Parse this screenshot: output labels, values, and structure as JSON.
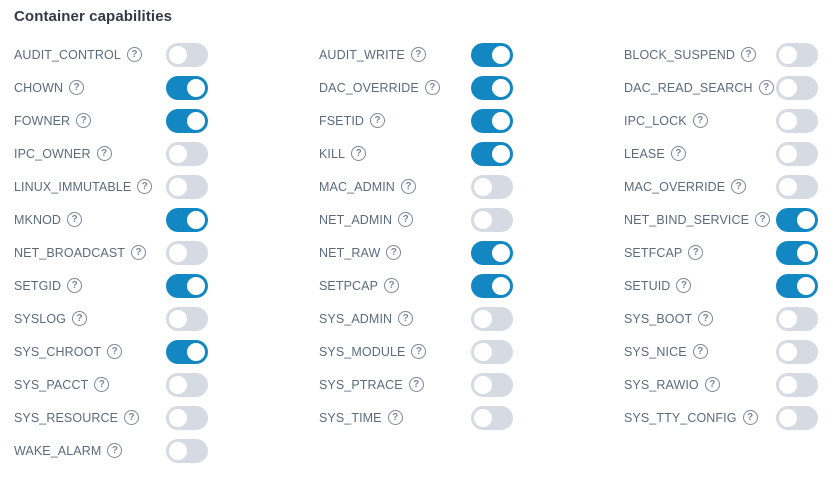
{
  "section": {
    "title": "Container capabilities"
  },
  "icons": {
    "help_glyph": "?"
  },
  "colors": {
    "toggle_on": "#1287c2",
    "toggle_off": "#d6dae2",
    "label": "#5b6b7c",
    "title": "#333a45"
  },
  "capabilities": [
    {
      "label": "AUDIT_CONTROL",
      "enabled": false
    },
    {
      "label": "AUDIT_WRITE",
      "enabled": true
    },
    {
      "label": "BLOCK_SUSPEND",
      "enabled": false
    },
    {
      "label": "CHOWN",
      "enabled": true
    },
    {
      "label": "DAC_OVERRIDE",
      "enabled": true
    },
    {
      "label": "DAC_READ_SEARCH",
      "enabled": false
    },
    {
      "label": "FOWNER",
      "enabled": true
    },
    {
      "label": "FSETID",
      "enabled": true
    },
    {
      "label": "IPC_LOCK",
      "enabled": false
    },
    {
      "label": "IPC_OWNER",
      "enabled": false
    },
    {
      "label": "KILL",
      "enabled": true
    },
    {
      "label": "LEASE",
      "enabled": false
    },
    {
      "label": "LINUX_IMMUTABLE",
      "enabled": false
    },
    {
      "label": "MAC_ADMIN",
      "enabled": false
    },
    {
      "label": "MAC_OVERRIDE",
      "enabled": false
    },
    {
      "label": "MKNOD",
      "enabled": true
    },
    {
      "label": "NET_ADMIN",
      "enabled": false
    },
    {
      "label": "NET_BIND_SERVICE",
      "enabled": true
    },
    {
      "label": "NET_BROADCAST",
      "enabled": false
    },
    {
      "label": "NET_RAW",
      "enabled": true
    },
    {
      "label": "SETFCAP",
      "enabled": true
    },
    {
      "label": "SETGID",
      "enabled": true
    },
    {
      "label": "SETPCAP",
      "enabled": true
    },
    {
      "label": "SETUID",
      "enabled": true
    },
    {
      "label": "SYSLOG",
      "enabled": false
    },
    {
      "label": "SYS_ADMIN",
      "enabled": false
    },
    {
      "label": "SYS_BOOT",
      "enabled": false
    },
    {
      "label": "SYS_CHROOT",
      "enabled": true
    },
    {
      "label": "SYS_MODULE",
      "enabled": false
    },
    {
      "label": "SYS_NICE",
      "enabled": false
    },
    {
      "label": "SYS_PACCT",
      "enabled": false
    },
    {
      "label": "SYS_PTRACE",
      "enabled": false
    },
    {
      "label": "SYS_RAWIO",
      "enabled": false
    },
    {
      "label": "SYS_RESOURCE",
      "enabled": false
    },
    {
      "label": "SYS_TIME",
      "enabled": false
    },
    {
      "label": "SYS_TTY_CONFIG",
      "enabled": false
    },
    {
      "label": "WAKE_ALARM",
      "enabled": false
    }
  ]
}
